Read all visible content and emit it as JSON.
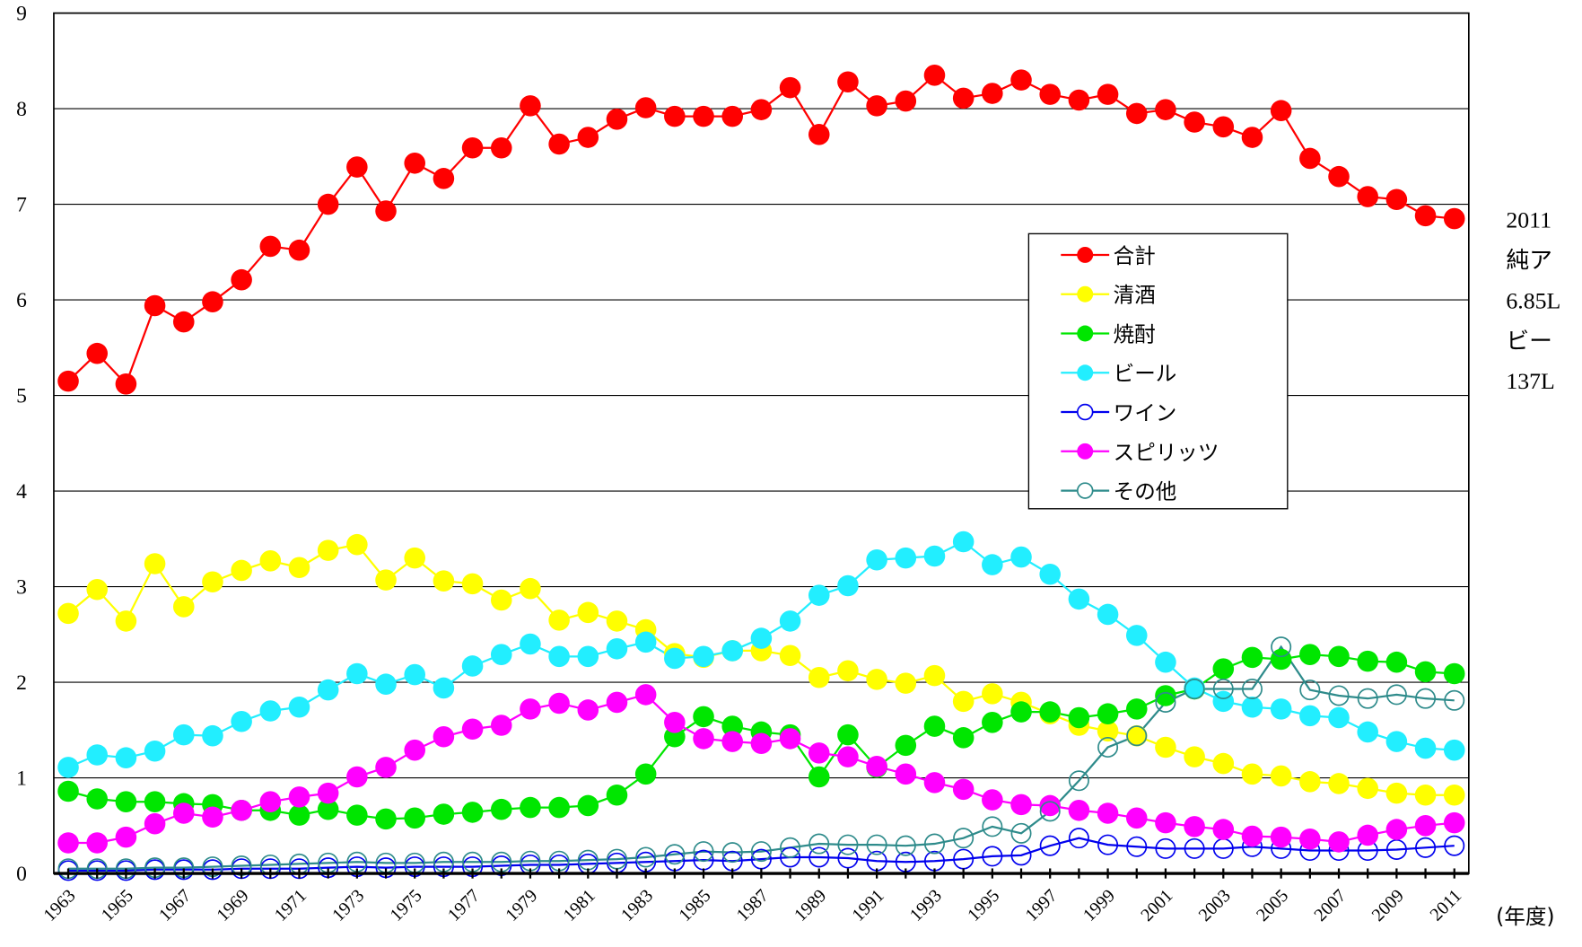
{
  "chart_data": {
    "type": "line",
    "x": [
      1963,
      1964,
      1965,
      1966,
      1967,
      1968,
      1969,
      1970,
      1971,
      1972,
      1973,
      1974,
      1975,
      1976,
      1977,
      1978,
      1979,
      1980,
      1981,
      1982,
      1983,
      1984,
      1985,
      1986,
      1987,
      1988,
      1989,
      1990,
      1991,
      1992,
      1993,
      1994,
      1995,
      1996,
      1997,
      1998,
      1999,
      2000,
      2001,
      2002,
      2003,
      2004,
      2005,
      2006,
      2007,
      2008,
      2009,
      2010,
      2011
    ],
    "xlim": [
      1962.5,
      2011.5
    ],
    "xticks": [
      1963,
      1965,
      1967,
      1969,
      1971,
      1973,
      1975,
      1977,
      1979,
      1981,
      1983,
      1985,
      1987,
      1989,
      1991,
      1993,
      1995,
      1997,
      1999,
      2001,
      2003,
      2005,
      2007,
      2009,
      2011
    ],
    "x_label": "(年度)",
    "ylim": [
      0,
      9
    ],
    "yticks": [
      0,
      1,
      2,
      3,
      4,
      5,
      6,
      7,
      8,
      9
    ],
    "grid": true,
    "series": [
      {
        "name": "合計",
        "color": "#ff0000",
        "marker": "filled",
        "values": [
          5.15,
          5.44,
          5.12,
          5.94,
          5.77,
          5.98,
          6.21,
          6.56,
          6.52,
          7.0,
          7.39,
          6.93,
          7.43,
          7.27,
          7.59,
          7.59,
          8.03,
          7.63,
          7.7,
          7.89,
          8.01,
          7.92,
          7.92,
          7.92,
          7.99,
          8.22,
          7.73,
          8.28,
          8.03,
          8.08,
          8.35,
          8.11,
          8.16,
          8.3,
          8.15,
          8.09,
          8.15,
          7.95,
          7.99,
          7.86,
          7.81,
          7.7,
          7.98,
          7.48,
          7.29,
          7.08,
          7.05,
          6.88,
          6.85
        ]
      },
      {
        "name": "清酒",
        "color": "#ffff00",
        "marker": "filled",
        "values": [
          2.72,
          2.97,
          2.64,
          3.24,
          2.79,
          3.05,
          3.17,
          3.27,
          3.2,
          3.38,
          3.44,
          3.07,
          3.3,
          3.06,
          3.03,
          2.86,
          2.98,
          2.65,
          2.73,
          2.64,
          2.55,
          2.3,
          2.26,
          2.33,
          2.33,
          2.28,
          2.05,
          2.12,
          2.03,
          1.99,
          2.07,
          1.8,
          1.88,
          1.79,
          1.67,
          1.55,
          1.49,
          1.44,
          1.32,
          1.22,
          1.15,
          1.04,
          1.02,
          0.96,
          0.94,
          0.89,
          0.84,
          0.82,
          0.82
        ]
      },
      {
        "name": "焼酎",
        "color": "#00e600",
        "marker": "filled",
        "values": [
          0.86,
          0.78,
          0.75,
          0.75,
          0.73,
          0.72,
          0.66,
          0.66,
          0.61,
          0.67,
          0.61,
          0.57,
          0.58,
          0.62,
          0.64,
          0.67,
          0.69,
          0.69,
          0.71,
          0.82,
          1.04,
          1.43,
          1.64,
          1.54,
          1.48,
          1.45,
          1.01,
          1.45,
          1.11,
          1.34,
          1.54,
          1.42,
          1.58,
          1.69,
          1.69,
          1.63,
          1.67,
          1.72,
          1.86,
          1.93,
          2.14,
          2.26,
          2.24,
          2.29,
          2.27,
          2.22,
          2.21,
          2.11,
          2.09
        ]
      },
      {
        "name": "ビール",
        "color": "#22eeff",
        "marker": "filled",
        "values": [
          1.11,
          1.24,
          1.21,
          1.28,
          1.45,
          1.44,
          1.59,
          1.7,
          1.74,
          1.92,
          2.09,
          1.98,
          2.08,
          1.94,
          2.17,
          2.29,
          2.4,
          2.27,
          2.27,
          2.35,
          2.42,
          2.25,
          2.27,
          2.33,
          2.46,
          2.64,
          2.91,
          3.01,
          3.28,
          3.3,
          3.32,
          3.47,
          3.23,
          3.31,
          3.13,
          2.87,
          2.71,
          2.49,
          2.21,
          1.94,
          1.8,
          1.74,
          1.72,
          1.65,
          1.63,
          1.48,
          1.38,
          1.31,
          1.29
        ]
      },
      {
        "name": "ワイン",
        "color": "#0000ee",
        "marker": "open",
        "values": [
          0.03,
          0.03,
          0.03,
          0.04,
          0.04,
          0.04,
          0.05,
          0.05,
          0.05,
          0.06,
          0.07,
          0.06,
          0.07,
          0.07,
          0.07,
          0.08,
          0.09,
          0.09,
          0.1,
          0.11,
          0.12,
          0.13,
          0.14,
          0.13,
          0.15,
          0.17,
          0.17,
          0.16,
          0.13,
          0.12,
          0.13,
          0.15,
          0.18,
          0.19,
          0.29,
          0.37,
          0.3,
          0.28,
          0.26,
          0.26,
          0.26,
          0.28,
          0.26,
          0.24,
          0.24,
          0.24,
          0.25,
          0.27,
          0.29
        ]
      },
      {
        "name": "スピリッツ",
        "color": "#ff00ff",
        "marker": "filled",
        "values": [
          0.32,
          0.32,
          0.38,
          0.52,
          0.63,
          0.59,
          0.66,
          0.75,
          0.8,
          0.84,
          1.01,
          1.11,
          1.29,
          1.43,
          1.51,
          1.55,
          1.72,
          1.78,
          1.71,
          1.79,
          1.87,
          1.58,
          1.41,
          1.38,
          1.36,
          1.41,
          1.26,
          1.22,
          1.12,
          1.04,
          0.95,
          0.88,
          0.77,
          0.72,
          0.71,
          0.66,
          0.63,
          0.58,
          0.53,
          0.49,
          0.46,
          0.39,
          0.38,
          0.36,
          0.33,
          0.4,
          0.46,
          0.5,
          0.53
        ]
      },
      {
        "name": "その他",
        "color": "#2e8b8b",
        "marker": "open",
        "values": [
          0.05,
          0.05,
          0.05,
          0.06,
          0.06,
          0.07,
          0.08,
          0.09,
          0.1,
          0.11,
          0.12,
          0.11,
          0.11,
          0.12,
          0.12,
          0.12,
          0.13,
          0.13,
          0.14,
          0.15,
          0.17,
          0.2,
          0.23,
          0.22,
          0.23,
          0.27,
          0.31,
          0.3,
          0.3,
          0.29,
          0.31,
          0.37,
          0.49,
          0.42,
          0.65,
          0.97,
          1.32,
          1.44,
          1.79,
          1.93,
          1.93,
          1.93,
          2.37,
          1.92,
          1.86,
          1.83,
          1.87,
          1.83,
          1.81
        ]
      }
    ],
    "annotations": [
      "2011",
      "純ア",
      "6.85L",
      "ビー",
      "137L"
    ]
  }
}
